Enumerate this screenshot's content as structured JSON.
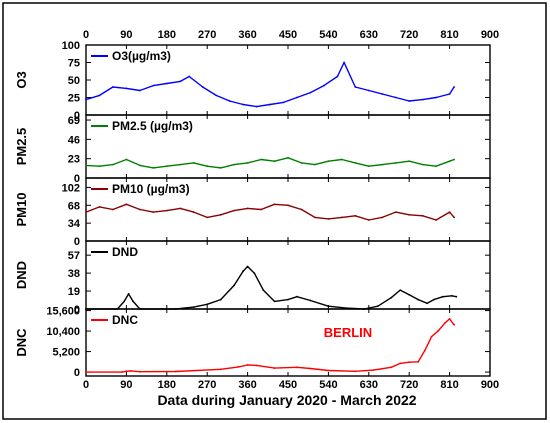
{
  "figure": {
    "xlabel": "Data during January 2020 - March 2022",
    "annotation": "BERLIN",
    "annotation_color": "#ff0000",
    "x_ticks": [
      "0",
      "90",
      "180",
      "270",
      "360",
      "450",
      "540",
      "630",
      "720",
      "810",
      "900"
    ]
  },
  "chart_data": [
    {
      "type": "line",
      "ylabel": "O3",
      "xlim": [
        0,
        900
      ],
      "ylim": [
        0,
        100
      ],
      "y_ticks": [
        "0",
        "25",
        "50",
        "75",
        "100"
      ],
      "grid": false,
      "legend_position": "top-left",
      "series": [
        {
          "name": "O3(µg/m3)",
          "color": "#0000ff",
          "points": [
            [
              0,
              22
            ],
            [
              30,
              28
            ],
            [
              60,
              40
            ],
            [
              90,
              38
            ],
            [
              120,
              35
            ],
            [
              150,
              42
            ],
            [
              180,
              45
            ],
            [
              210,
              48
            ],
            [
              230,
              55
            ],
            [
              260,
              40
            ],
            [
              290,
              28
            ],
            [
              320,
              20
            ],
            [
              350,
              15
            ],
            [
              380,
              12
            ],
            [
              410,
              15
            ],
            [
              440,
              18
            ],
            [
              470,
              25
            ],
            [
              500,
              32
            ],
            [
              530,
              42
            ],
            [
              560,
              55
            ],
            [
              575,
              75
            ],
            [
              600,
              40
            ],
            [
              630,
              35
            ],
            [
              660,
              30
            ],
            [
              690,
              25
            ],
            [
              720,
              20
            ],
            [
              750,
              22
            ],
            [
              780,
              25
            ],
            [
              810,
              30
            ],
            [
              820,
              40
            ]
          ]
        }
      ]
    },
    {
      "type": "line",
      "ylabel": "PM2.5",
      "xlim": [
        0,
        900
      ],
      "ylim": [
        0,
        75
      ],
      "y_ticks": [
        "0",
        "23",
        "46",
        "69"
      ],
      "grid": false,
      "legend_position": "top-left",
      "series": [
        {
          "name": "PM2.5 (µg/m3)",
          "color": "#008000",
          "points": [
            [
              0,
              15
            ],
            [
              30,
              14
            ],
            [
              60,
              16
            ],
            [
              90,
              22
            ],
            [
              120,
              15
            ],
            [
              150,
              12
            ],
            [
              180,
              14
            ],
            [
              210,
              16
            ],
            [
              240,
              18
            ],
            [
              270,
              14
            ],
            [
              300,
              12
            ],
            [
              330,
              16
            ],
            [
              360,
              18
            ],
            [
              390,
              22
            ],
            [
              420,
              20
            ],
            [
              450,
              24
            ],
            [
              480,
              18
            ],
            [
              510,
              16
            ],
            [
              540,
              20
            ],
            [
              570,
              22
            ],
            [
              600,
              18
            ],
            [
              630,
              14
            ],
            [
              660,
              16
            ],
            [
              690,
              18
            ],
            [
              720,
              20
            ],
            [
              750,
              16
            ],
            [
              780,
              14
            ],
            [
              810,
              20
            ],
            [
              820,
              22
            ]
          ]
        }
      ]
    },
    {
      "type": "line",
      "ylabel": "PM10",
      "xlim": [
        0,
        900
      ],
      "ylim": [
        0,
        120
      ],
      "y_ticks": [
        "0",
        "34",
        "68",
        "102"
      ],
      "grid": false,
      "legend_position": "top-left",
      "series": [
        {
          "name": "PM10 (µg/m3)",
          "color": "#8b0000",
          "points": [
            [
              0,
              55
            ],
            [
              30,
              65
            ],
            [
              60,
              60
            ],
            [
              90,
              70
            ],
            [
              120,
              60
            ],
            [
              150,
              55
            ],
            [
              180,
              58
            ],
            [
              210,
              62
            ],
            [
              240,
              55
            ],
            [
              270,
              45
            ],
            [
              300,
              50
            ],
            [
              330,
              58
            ],
            [
              360,
              62
            ],
            [
              390,
              60
            ],
            [
              420,
              70
            ],
            [
              450,
              68
            ],
            [
              480,
              60
            ],
            [
              510,
              45
            ],
            [
              540,
              42
            ],
            [
              570,
              45
            ],
            [
              600,
              48
            ],
            [
              630,
              40
            ],
            [
              660,
              45
            ],
            [
              690,
              55
            ],
            [
              720,
              50
            ],
            [
              750,
              48
            ],
            [
              780,
              40
            ],
            [
              810,
              55
            ],
            [
              820,
              45
            ]
          ]
        }
      ]
    },
    {
      "type": "line",
      "ylabel": "DND",
      "xlim": [
        0,
        900
      ],
      "ylim": [
        0,
        72
      ],
      "y_ticks": [
        "0",
        "19",
        "38",
        "57"
      ],
      "grid": false,
      "legend_position": "top-left",
      "series": [
        {
          "name": "DND",
          "color": "#000000",
          "points": [
            [
              0,
              0
            ],
            [
              70,
              0
            ],
            [
              85,
              8
            ],
            [
              95,
              16
            ],
            [
              105,
              8
            ],
            [
              120,
              0
            ],
            [
              200,
              0
            ],
            [
              240,
              2
            ],
            [
              270,
              5
            ],
            [
              300,
              10
            ],
            [
              330,
              25
            ],
            [
              350,
              40
            ],
            [
              360,
              45
            ],
            [
              375,
              38
            ],
            [
              395,
              20
            ],
            [
              420,
              8
            ],
            [
              450,
              10
            ],
            [
              470,
              13
            ],
            [
              500,
              9
            ],
            [
              540,
              3
            ],
            [
              580,
              1
            ],
            [
              620,
              0
            ],
            [
              650,
              3
            ],
            [
              680,
              12
            ],
            [
              700,
              20
            ],
            [
              720,
              15
            ],
            [
              740,
              10
            ],
            [
              760,
              6
            ],
            [
              775,
              10
            ],
            [
              795,
              13
            ],
            [
              815,
              14
            ],
            [
              825,
              13
            ]
          ]
        }
      ]
    },
    {
      "type": "line",
      "ylabel": "DNC",
      "xlim": [
        0,
        900
      ],
      "ylim": [
        -1000,
        16000
      ],
      "y_ticks": [
        "0",
        "5,200",
        "10,400",
        "15,600"
      ],
      "grid": false,
      "legend_position": "top-left",
      "series": [
        {
          "name": "DNC",
          "color": "#ff0000",
          "points": [
            [
              0,
              0
            ],
            [
              80,
              0
            ],
            [
              90,
              200
            ],
            [
              100,
              300
            ],
            [
              120,
              100
            ],
            [
              200,
              150
            ],
            [
              300,
              700
            ],
            [
              340,
              1300
            ],
            [
              360,
              1800
            ],
            [
              380,
              1700
            ],
            [
              420,
              1000
            ],
            [
              470,
              1200
            ],
            [
              500,
              900
            ],
            [
              540,
              400
            ],
            [
              600,
              200
            ],
            [
              640,
              500
            ],
            [
              680,
              1200
            ],
            [
              700,
              2200
            ],
            [
              720,
              2500
            ],
            [
              740,
              2600
            ],
            [
              755,
              5500
            ],
            [
              770,
              9000
            ],
            [
              785,
              10500
            ],
            [
              800,
              12500
            ],
            [
              810,
              13500
            ],
            [
              820,
              12000
            ]
          ]
        }
      ]
    }
  ]
}
